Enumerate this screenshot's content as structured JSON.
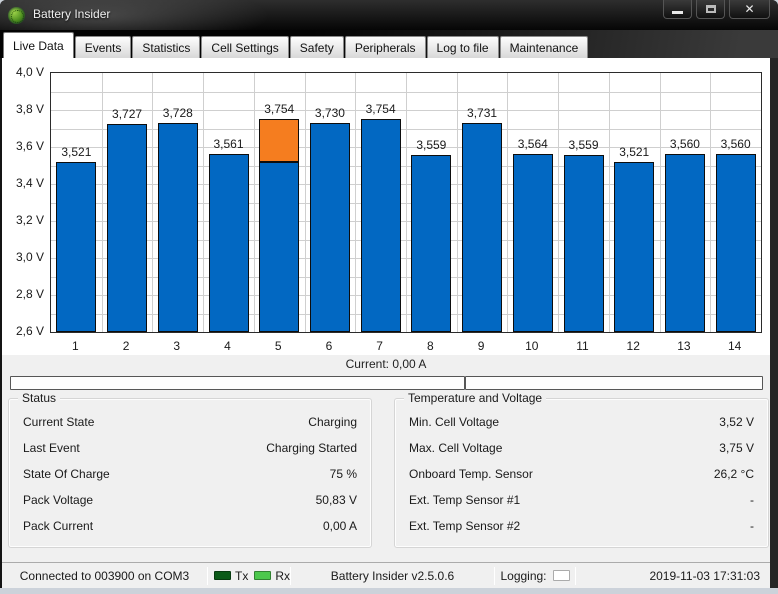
{
  "window": {
    "title": "Battery Insider",
    "controls": {
      "close_glyph": "✕"
    }
  },
  "tabs": [
    {
      "label": "Live Data",
      "active": true
    },
    {
      "label": "Events",
      "active": false
    },
    {
      "label": "Statistics",
      "active": false
    },
    {
      "label": "Cell Settings",
      "active": false
    },
    {
      "label": "Safety",
      "active": false
    },
    {
      "label": "Peripherals",
      "active": false
    },
    {
      "label": "Log to file",
      "active": false
    },
    {
      "label": "Maintenance",
      "active": false
    }
  ],
  "chart_data": {
    "type": "bar",
    "categories": [
      "1",
      "2",
      "3",
      "4",
      "5",
      "6",
      "7",
      "8",
      "9",
      "10",
      "11",
      "12",
      "13",
      "14"
    ],
    "values": [
      3.521,
      3.727,
      3.728,
      3.561,
      3.754,
      3.73,
      3.754,
      3.559,
      3.731,
      3.564,
      3.559,
      3.521,
      3.56,
      3.56
    ],
    "value_labels": [
      "3,521",
      "3,727",
      "3,728",
      "3,561",
      "3,754",
      "3,730",
      "3,754",
      "3,559",
      "3,731",
      "3,564",
      "3,559",
      "3,521",
      "3,560",
      "3,560"
    ],
    "y_tick_labels": [
      "4,0 V",
      "3,8 V",
      "3,6 V",
      "3,4 V",
      "3,2 V",
      "3,0 V",
      "2,8 V",
      "2,6 V"
    ],
    "y_tick_values": [
      4.0,
      3.8,
      3.6,
      3.4,
      3.2,
      3.0,
      2.8,
      2.6
    ],
    "ylim": [
      2.6,
      4.0
    ],
    "minor_grid_step": 0.1,
    "grid": true,
    "bar_color": "#0268c2",
    "balancing_highlight": {
      "cell_index": 4,
      "from_v": 3.52,
      "to_v": 3.754,
      "color": "#f57d1f"
    },
    "title": "",
    "xlabel": "",
    "ylabel": ""
  },
  "current_gauge": {
    "label": "Current: 0,00 A",
    "split_percent": 60.4
  },
  "status_group": {
    "title": "Status",
    "rows": [
      {
        "label": "Current State",
        "value": "Charging"
      },
      {
        "label": "Last Event",
        "value": "Charging Started"
      },
      {
        "label": "State Of Charge",
        "value": "75 %"
      },
      {
        "label": "Pack Voltage",
        "value": "50,83 V"
      },
      {
        "label": "Pack Current",
        "value": "0,00 A"
      }
    ]
  },
  "temp_group": {
    "title": "Temperature and Voltage",
    "rows": [
      {
        "label": "Min. Cell Voltage",
        "value": "3,52 V"
      },
      {
        "label": "Max. Cell Voltage",
        "value": "3,75 V"
      },
      {
        "label": "Onboard Temp. Sensor",
        "value": "26,2 °C"
      },
      {
        "label": "Ext. Temp Sensor #1",
        "value": "-"
      },
      {
        "label": "Ext. Temp Sensor #2",
        "value": "-"
      }
    ]
  },
  "statusbar": {
    "connection": "Connected to 003900 on COM3",
    "tx_label": "Tx",
    "rx_label": "Rx",
    "tx_color": "#0b5a18",
    "rx_color": "#4cc84c",
    "version": "Battery Insider v2.5.0.6",
    "logging_label": "Logging:",
    "datetime": "2019-11-03 17:31:03"
  }
}
